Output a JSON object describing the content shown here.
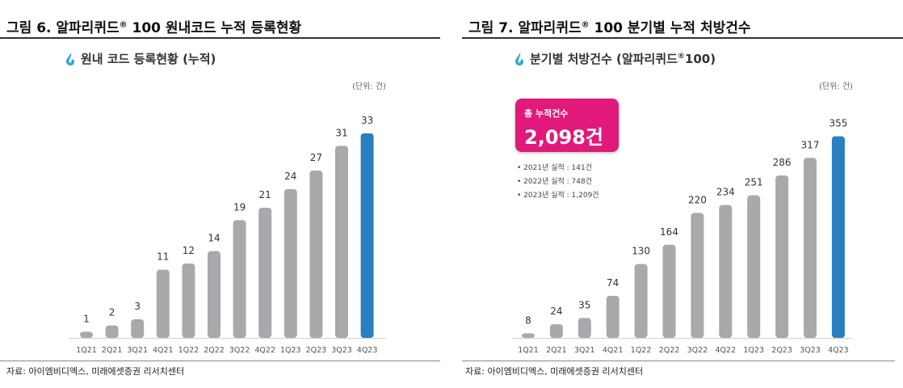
{
  "left": {
    "fig_title": "그림 6. 알파리퀴드",
    "fig_title_mark": "®",
    "fig_title_rest": " 100 원내코드 누적 등록현황",
    "chart_title": "원내 코드 등록현황 (누적)",
    "unit": "(단위: 건)",
    "source": "자료: 아이엠비디엑스, 미래에셋증권 리서치센터"
  },
  "right": {
    "fig_title": "그림 7. 알파리퀴드",
    "fig_title_mark": "®",
    "fig_title_rest": " 100 분기별 누적 처방건수",
    "chart_title": "분기별 처방건수 (알파리퀴드",
    "chart_title_mark": "®",
    "chart_title_rest": "100)",
    "unit": "(단위: 건)",
    "callout_label": "총 누적건수",
    "callout_value": "2,098건",
    "notes": [
      "• 2021년 실적 : 141건",
      "• 2022년 실적 : 748건",
      "• 2023년 실적 : 1,209건"
    ],
    "source": "자료: 아이엠비디엑스, 미래에셋증권 리서치센터"
  },
  "colors": {
    "bar": "#a7a9ac",
    "highlight": "#2a7fc1",
    "callout": "#e0197a",
    "icon": "#2aa7df"
  },
  "chart_data": [
    {
      "type": "bar",
      "title": "원내 코드 등록현황 (누적)",
      "categories": [
        "1Q21",
        "2Q21",
        "3Q21",
        "4Q21",
        "1Q22",
        "2Q22",
        "3Q22",
        "4Q22",
        "1Q23",
        "2Q23",
        "3Q23",
        "4Q23"
      ],
      "values": [
        1,
        2,
        3,
        11,
        12,
        14,
        19,
        21,
        24,
        27,
        31,
        33
      ],
      "highlight_index": 11,
      "ylim": [
        0,
        36
      ],
      "grid": false
    },
    {
      "type": "bar",
      "title": "분기별 처방건수 (알파리퀴드®100)",
      "categories": [
        "1Q21",
        "2Q21",
        "3Q21",
        "4Q21",
        "1Q22",
        "2Q22",
        "3Q22",
        "4Q22",
        "1Q23",
        "2Q23",
        "3Q23",
        "4Q23"
      ],
      "values": [
        8,
        24,
        35,
        74,
        130,
        164,
        220,
        234,
        251,
        286,
        317,
        355
      ],
      "highlight_index": 11,
      "ylim": [
        0,
        390
      ],
      "grid": false
    }
  ]
}
